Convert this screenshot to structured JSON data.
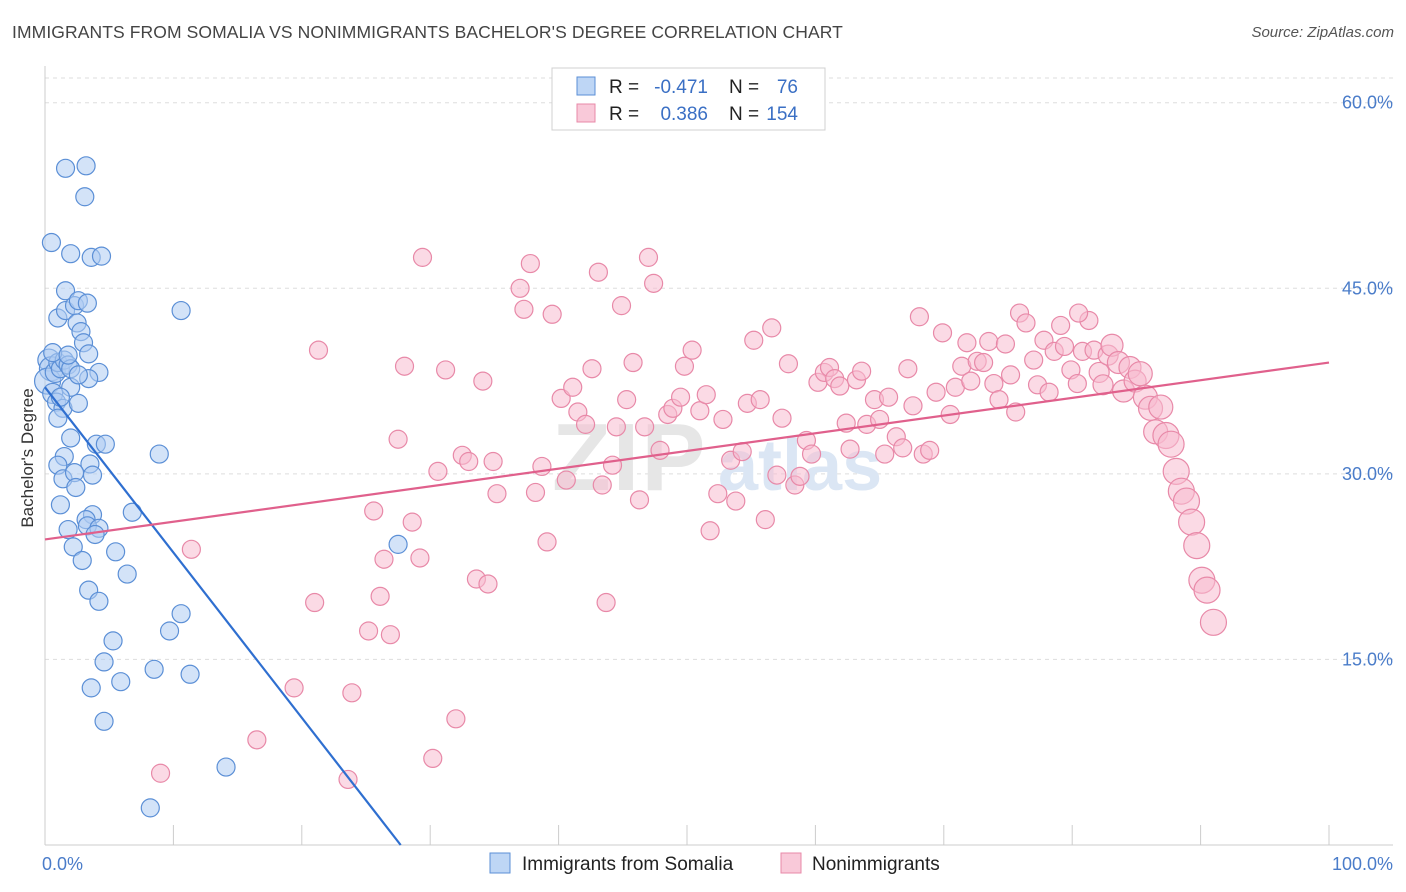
{
  "title": "IMMIGRANTS FROM SOMALIA VS NONIMMIGRANTS BACHELOR'S DEGREE CORRELATION CHART",
  "source": "Source: ZipAtlas.com",
  "watermark": {
    "zip": "ZIP",
    "atlas": "atlas"
  },
  "colors": {
    "somalia_fill": "#aeccf3",
    "somalia_stroke": "#5b8fd6",
    "somalia_line": "#2f6fd0",
    "non_fill": "#f7bcd0",
    "non_stroke": "#e889a8",
    "non_line": "#e0608c",
    "grid": "#dddddd",
    "tick_text": "#4a7cc9"
  },
  "legend": {
    "rows": [
      {
        "r_label": "R =",
        "r_value": "-0.471",
        "n_label": "N =",
        "n_value": "76"
      },
      {
        "r_label": "R =",
        "r_value": "0.386",
        "n_label": "N =",
        "n_value": "154"
      }
    ]
  },
  "bottom_legend": [
    "Immigrants from Somalia",
    "Nonimmigrants"
  ],
  "chart_data": {
    "type": "scatter",
    "title": "IMMIGRANTS FROM SOMALIA VS NONIMMIGRANTS BACHELOR'S DEGREE CORRELATION CHART",
    "xlabel": "",
    "ylabel": "Bachelor's Degree",
    "xlim": [
      0,
      100
    ],
    "ylim": [
      0,
      62
    ],
    "x_tick_labels": [
      "0.0%",
      "100.0%"
    ],
    "y_ticks": [
      15,
      30,
      45,
      60
    ],
    "y_tick_labels": [
      "15.0%",
      "30.0%",
      "45.0%",
      "60.0%"
    ],
    "grid": true,
    "legend_position": "top-center",
    "series": [
      {
        "name": "Immigrants from Somalia",
        "R": -0.471,
        "N": 76,
        "trend": {
          "x": [
            0,
            27.7
          ],
          "y": [
            37.0,
            0
          ]
        },
        "points": [
          [
            0.3,
            39.2,
            11
          ],
          [
            0.5,
            38.5,
            12
          ],
          [
            0.2,
            37.5,
            13
          ],
          [
            0.6,
            36.5,
            10
          ],
          [
            0.8,
            38.2,
            10
          ],
          [
            1.0,
            39.0,
            9
          ],
          [
            1.2,
            38.5,
            9
          ],
          [
            1.5,
            39.2,
            9
          ],
          [
            1.8,
            38.8,
            9
          ],
          [
            2.0,
            38.5,
            9
          ],
          [
            0.5,
            48.7,
            9
          ],
          [
            1.6,
            54.7,
            9
          ],
          [
            3.2,
            54.9,
            9
          ],
          [
            3.1,
            52.4,
            9
          ],
          [
            2.0,
            47.8,
            9
          ],
          [
            3.6,
            47.5,
            9
          ],
          [
            4.4,
            47.6,
            9
          ],
          [
            1.6,
            44.8,
            9
          ],
          [
            1.0,
            42.6,
            9
          ],
          [
            1.6,
            43.2,
            9
          ],
          [
            2.3,
            43.6,
            9
          ],
          [
            2.6,
            44.0,
            9
          ],
          [
            3.3,
            43.8,
            9
          ],
          [
            2.5,
            42.2,
            9
          ],
          [
            2.8,
            41.5,
            9
          ],
          [
            3.0,
            40.6,
            9
          ],
          [
            0.6,
            39.8,
            9
          ],
          [
            1.8,
            39.6,
            9
          ],
          [
            3.4,
            39.7,
            9
          ],
          [
            4.2,
            38.2,
            9
          ],
          [
            3.4,
            37.7,
            9
          ],
          [
            0.9,
            35.8,
            9
          ],
          [
            1.4,
            35.3,
            9
          ],
          [
            2.6,
            35.7,
            9
          ],
          [
            2.0,
            32.9,
            9
          ],
          [
            4.0,
            32.4,
            9
          ],
          [
            4.7,
            32.4,
            9
          ],
          [
            1.5,
            31.4,
            9
          ],
          [
            1.0,
            30.7,
            9
          ],
          [
            3.5,
            30.8,
            9
          ],
          [
            1.4,
            29.6,
            9
          ],
          [
            2.3,
            30.1,
            9
          ],
          [
            3.7,
            29.9,
            9
          ],
          [
            2.4,
            28.9,
            9
          ],
          [
            1.2,
            27.5,
            9
          ],
          [
            3.7,
            26.7,
            9
          ],
          [
            3.2,
            26.3,
            9
          ],
          [
            6.8,
            26.9,
            9
          ],
          [
            1.8,
            25.5,
            9
          ],
          [
            3.3,
            25.8,
            9
          ],
          [
            4.2,
            25.6,
            9
          ],
          [
            3.9,
            25.1,
            9
          ],
          [
            2.2,
            24.1,
            9
          ],
          [
            5.5,
            23.7,
            9
          ],
          [
            2.9,
            23.0,
            9
          ],
          [
            6.4,
            21.9,
            9
          ],
          [
            8.9,
            31.6,
            9
          ],
          [
            10.6,
            43.2,
            9
          ],
          [
            3.4,
            20.6,
            9
          ],
          [
            4.2,
            19.7,
            9
          ],
          [
            10.6,
            18.7,
            9
          ],
          [
            9.7,
            17.3,
            9
          ],
          [
            5.3,
            16.5,
            9
          ],
          [
            4.6,
            14.8,
            9
          ],
          [
            8.5,
            14.2,
            9
          ],
          [
            11.3,
            13.8,
            9
          ],
          [
            5.9,
            13.2,
            9
          ],
          [
            3.6,
            12.7,
            9
          ],
          [
            4.6,
            10.0,
            9
          ],
          [
            14.1,
            6.3,
            9
          ],
          [
            8.2,
            3.0,
            9
          ],
          [
            27.5,
            24.3,
            9
          ],
          [
            2.0,
            37.0,
            9
          ],
          [
            1.2,
            36.2,
            9
          ],
          [
            2.6,
            38.0,
            9
          ],
          [
            1.0,
            34.5,
            9
          ]
        ]
      },
      {
        "name": "Nonimmigrants",
        "R": 0.386,
        "N": 154,
        "trend": {
          "x": [
            0,
            100
          ],
          "y": [
            24.7,
            39.0
          ]
        },
        "points": [
          [
            9.0,
            5.8,
            9
          ],
          [
            11.4,
            23.9,
            9
          ],
          [
            16.5,
            8.5,
            9
          ],
          [
            19.4,
            12.7,
            9
          ],
          [
            21.0,
            19.6,
            9
          ],
          [
            21.3,
            40.0,
            9
          ],
          [
            23.6,
            5.3,
            9
          ],
          [
            23.9,
            12.3,
            9
          ],
          [
            25.2,
            17.3,
            9
          ],
          [
            25.6,
            27.0,
            9
          ],
          [
            26.1,
            20.1,
            9
          ],
          [
            26.4,
            23.1,
            9
          ],
          [
            26.9,
            17.0,
            9
          ],
          [
            27.5,
            32.8,
            9
          ],
          [
            28.0,
            38.7,
            9
          ],
          [
            28.6,
            26.1,
            9
          ],
          [
            29.2,
            23.2,
            9
          ],
          [
            29.4,
            47.5,
            9
          ],
          [
            30.2,
            7.0,
            9
          ],
          [
            30.6,
            30.2,
            9
          ],
          [
            31.2,
            38.4,
            9
          ],
          [
            32.0,
            10.2,
            9
          ],
          [
            32.5,
            31.5,
            9
          ],
          [
            33.0,
            31.0,
            9
          ],
          [
            33.6,
            21.5,
            9
          ],
          [
            34.1,
            37.5,
            9
          ],
          [
            34.5,
            21.1,
            9
          ],
          [
            34.9,
            31.0,
            9
          ],
          [
            35.2,
            28.4,
            9
          ],
          [
            37.0,
            45.0,
            9
          ],
          [
            37.3,
            43.3,
            9
          ],
          [
            37.8,
            47.0,
            9
          ],
          [
            38.2,
            28.5,
            9
          ],
          [
            38.7,
            30.6,
            9
          ],
          [
            39.1,
            24.5,
            9
          ],
          [
            39.5,
            42.9,
            9
          ],
          [
            40.2,
            36.1,
            9
          ],
          [
            40.6,
            29.5,
            9
          ],
          [
            41.1,
            37.0,
            9
          ],
          [
            41.5,
            35.0,
            9
          ],
          [
            42.1,
            34.0,
            9
          ],
          [
            42.6,
            38.5,
            9
          ],
          [
            43.1,
            46.3,
            9
          ],
          [
            43.4,
            29.1,
            9
          ],
          [
            43.7,
            19.6,
            9
          ],
          [
            44.2,
            30.7,
            9
          ],
          [
            44.5,
            33.8,
            9
          ],
          [
            44.9,
            43.6,
            9
          ],
          [
            45.3,
            36.0,
            9
          ],
          [
            45.8,
            39.0,
            9
          ],
          [
            46.3,
            27.9,
            9
          ],
          [
            46.7,
            33.8,
            9
          ],
          [
            47.0,
            47.5,
            9
          ],
          [
            47.4,
            45.4,
            9
          ],
          [
            47.9,
            31.9,
            9
          ],
          [
            48.5,
            34.8,
            9
          ],
          [
            48.9,
            35.3,
            9
          ],
          [
            49.5,
            36.2,
            9
          ],
          [
            49.8,
            38.7,
            9
          ],
          [
            50.4,
            40.0,
            9
          ],
          [
            51.0,
            35.1,
            9
          ],
          [
            51.5,
            36.4,
            9
          ],
          [
            51.8,
            25.4,
            9
          ],
          [
            52.4,
            28.4,
            9
          ],
          [
            52.8,
            34.4,
            9
          ],
          [
            53.4,
            31.1,
            9
          ],
          [
            53.8,
            27.8,
            9
          ],
          [
            54.3,
            31.8,
            9
          ],
          [
            54.7,
            35.7,
            9
          ],
          [
            55.2,
            40.8,
            9
          ],
          [
            55.7,
            36.0,
            9
          ],
          [
            56.1,
            26.3,
            9
          ],
          [
            56.6,
            41.8,
            9
          ],
          [
            57.0,
            29.9,
            9
          ],
          [
            57.4,
            34.5,
            9
          ],
          [
            57.9,
            38.9,
            9
          ],
          [
            58.4,
            29.1,
            9
          ],
          [
            58.8,
            29.8,
            9
          ],
          [
            59.3,
            32.7,
            9
          ],
          [
            59.7,
            31.6,
            9
          ],
          [
            60.2,
            37.4,
            9
          ],
          [
            60.7,
            38.2,
            9
          ],
          [
            61.1,
            38.6,
            9
          ],
          [
            61.5,
            37.7,
            9
          ],
          [
            61.9,
            37.1,
            9
          ],
          [
            62.4,
            34.1,
            9
          ],
          [
            62.7,
            32.0,
            9
          ],
          [
            63.2,
            37.6,
            9
          ],
          [
            63.6,
            38.3,
            9
          ],
          [
            64.0,
            34.0,
            9
          ],
          [
            64.6,
            36.0,
            9
          ],
          [
            65.0,
            34.4,
            9
          ],
          [
            65.4,
            31.6,
            9
          ],
          [
            65.7,
            36.2,
            9
          ],
          [
            66.3,
            33.0,
            9
          ],
          [
            66.8,
            32.1,
            9
          ],
          [
            67.2,
            38.5,
            9
          ],
          [
            67.6,
            35.5,
            9
          ],
          [
            68.1,
            42.7,
            9
          ],
          [
            68.4,
            31.6,
            9
          ],
          [
            68.9,
            31.9,
            9
          ],
          [
            69.4,
            36.6,
            9
          ],
          [
            69.9,
            41.4,
            9
          ],
          [
            70.5,
            34.8,
            9
          ],
          [
            70.9,
            37.0,
            9
          ],
          [
            71.4,
            38.7,
            9
          ],
          [
            71.8,
            40.6,
            9
          ],
          [
            72.1,
            37.5,
            9
          ],
          [
            72.6,
            39.1,
            9
          ],
          [
            73.1,
            39.0,
            9
          ],
          [
            73.5,
            40.7,
            9
          ],
          [
            73.9,
            37.3,
            9
          ],
          [
            74.3,
            36.0,
            9
          ],
          [
            74.8,
            40.5,
            9
          ],
          [
            75.2,
            38.0,
            9
          ],
          [
            75.6,
            35.0,
            9
          ],
          [
            75.9,
            43.0,
            9
          ],
          [
            76.4,
            42.2,
            9
          ],
          [
            77.0,
            39.2,
            9
          ],
          [
            77.3,
            37.2,
            9
          ],
          [
            77.8,
            40.8,
            9
          ],
          [
            78.2,
            36.6,
            9
          ],
          [
            78.6,
            39.9,
            9
          ],
          [
            79.1,
            42.0,
            9
          ],
          [
            79.4,
            40.3,
            9
          ],
          [
            79.9,
            38.4,
            9
          ],
          [
            80.4,
            37.3,
            9
          ],
          [
            80.8,
            39.9,
            9
          ],
          [
            81.3,
            42.4,
            9
          ],
          [
            81.7,
            40.0,
            9
          ],
          [
            82.1,
            38.2,
            10
          ],
          [
            82.4,
            37.2,
            10
          ],
          [
            82.8,
            39.6,
            10
          ],
          [
            83.1,
            40.4,
            11
          ],
          [
            83.6,
            39.0,
            11
          ],
          [
            84.0,
            36.7,
            11
          ],
          [
            84.5,
            38.6,
            11
          ],
          [
            84.9,
            37.5,
            11
          ],
          [
            85.3,
            38.1,
            12
          ],
          [
            85.7,
            36.2,
            12
          ],
          [
            86.1,
            35.3,
            12
          ],
          [
            86.5,
            33.4,
            12
          ],
          [
            86.9,
            35.4,
            12
          ],
          [
            87.3,
            33.1,
            13
          ],
          [
            87.7,
            32.4,
            13
          ],
          [
            88.1,
            30.2,
            13
          ],
          [
            88.5,
            28.6,
            13
          ],
          [
            88.9,
            27.8,
            13
          ],
          [
            89.3,
            26.1,
            13
          ],
          [
            89.7,
            24.2,
            13
          ],
          [
            90.1,
            21.4,
            13
          ],
          [
            90.5,
            20.6,
            13
          ],
          [
            91.0,
            18.0,
            13
          ],
          [
            80.5,
            43.0,
            9
          ]
        ]
      }
    ]
  }
}
